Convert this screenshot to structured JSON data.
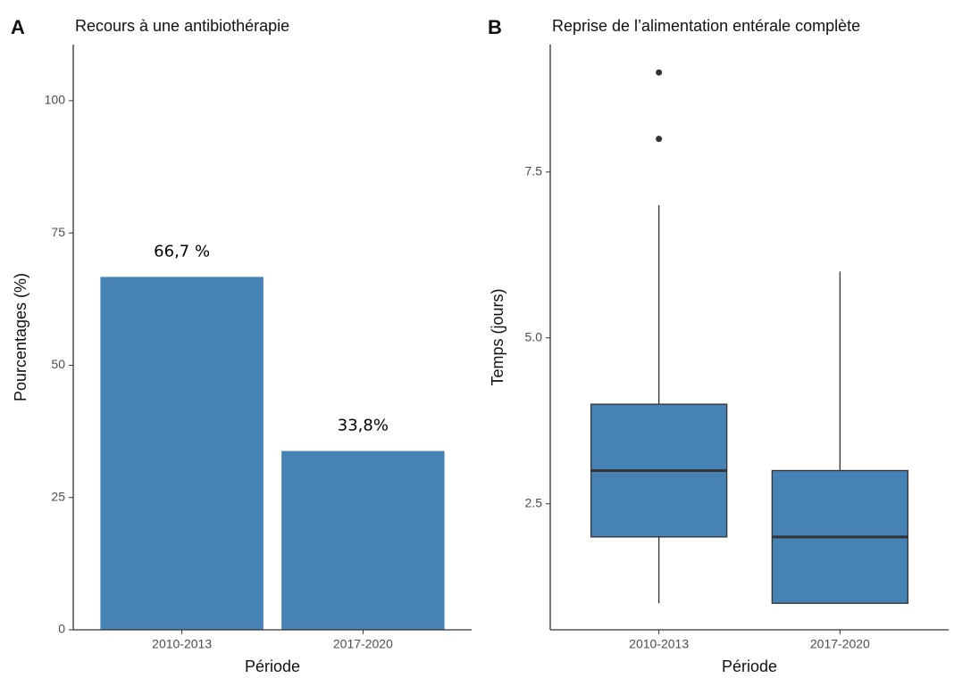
{
  "chart_data": [
    {
      "type": "bar",
      "panel_label": "A",
      "title": "Recours à une antibiothérapie",
      "xlabel": "Période",
      "ylabel": "Pourcentages (%)",
      "categories": [
        "2010-2013",
        "2017-2020"
      ],
      "values": [
        66.7,
        33.8
      ],
      "value_labels": [
        "66,7 %",
        "33,8%"
      ],
      "color": "#4682b4",
      "ylim": [
        0,
        110.6
      ],
      "yticks": [
        0,
        25,
        50,
        75,
        100
      ]
    },
    {
      "type": "box",
      "panel_label": "B",
      "title": "Reprise de l’alimentation entérale complète",
      "xlabel": "Période",
      "ylabel": "Temps (jours)",
      "categories": [
        "2010-2013",
        "2017-2020"
      ],
      "color": "#4682b4",
      "boxes": [
        {
          "min": 1,
          "q1": 2,
          "median": 3,
          "q3": 4,
          "max": 7,
          "outliers": [
            9,
            8
          ]
        },
        {
          "min": 1,
          "q1": 1,
          "median": 2,
          "q3": 3,
          "max": 6,
          "outliers": []
        }
      ],
      "ylim": [
        0.6,
        9.42
      ],
      "yticks": [
        2.5,
        {
          "value": 5,
          "label": "5.0"
        },
        {
          "value": 7.5,
          "label": "7.5"
        }
      ]
    }
  ]
}
